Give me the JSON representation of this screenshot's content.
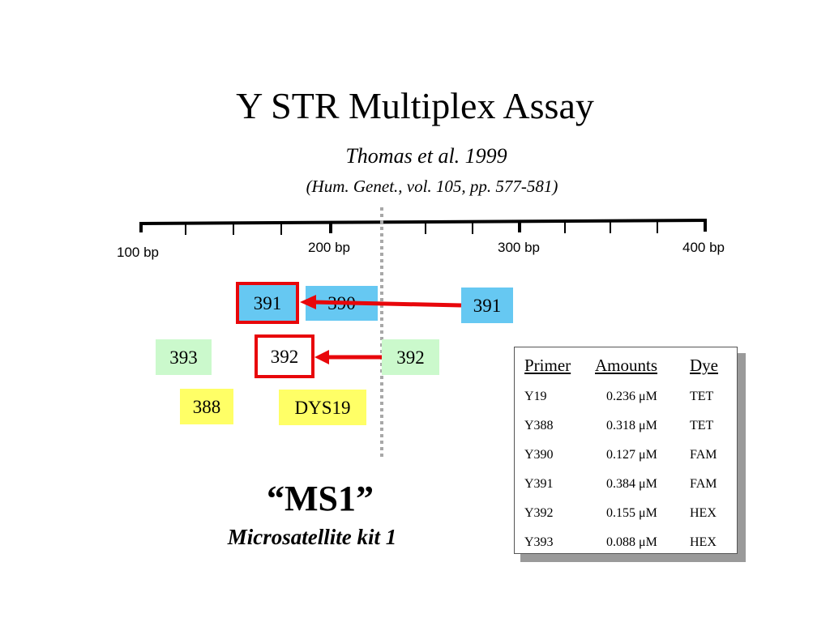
{
  "slide": {
    "title": "Y STR Multiplex Assay",
    "citation": "Thomas et al. 1999",
    "journal": "(Hum. Genet., vol. 105, pp. 577-581)",
    "kit_name": "“MS1”",
    "kit_subtitle": "Microsatellite kit 1"
  },
  "ruler": {
    "labels": [
      "100 bp",
      "200 bp",
      "300 bp",
      "400 bp"
    ]
  },
  "markers": {
    "m391_blue": "391",
    "m390": "390",
    "m391_right": "391",
    "m393": "393",
    "m392_left": "392",
    "m392_right": "392",
    "m388": "388",
    "dys19": "DYS19"
  },
  "colors": {
    "fam_blue": "#66c8f2",
    "hex_green": "#cbf9cc",
    "tet_yellow": "#ffff66",
    "arrow_red": "#e8070b"
  },
  "table": {
    "headers": [
      "Primer",
      "Amounts",
      "Dye"
    ],
    "rows": [
      {
        "primer": "Y19",
        "amount": "0.236 μM",
        "dye": "TET"
      },
      {
        "primer": "Y388",
        "amount": "0.318 μM",
        "dye": "TET"
      },
      {
        "primer": "Y390",
        "amount": "0.127 μM",
        "dye": "FAM"
      },
      {
        "primer": "Y391",
        "amount": "0.384 μM",
        "dye": "FAM"
      },
      {
        "primer": "Y392",
        "amount": "0.155 μM",
        "dye": "HEX"
      },
      {
        "primer": "Y393",
        "amount": "0.088 μM",
        "dye": "HEX"
      }
    ]
  }
}
